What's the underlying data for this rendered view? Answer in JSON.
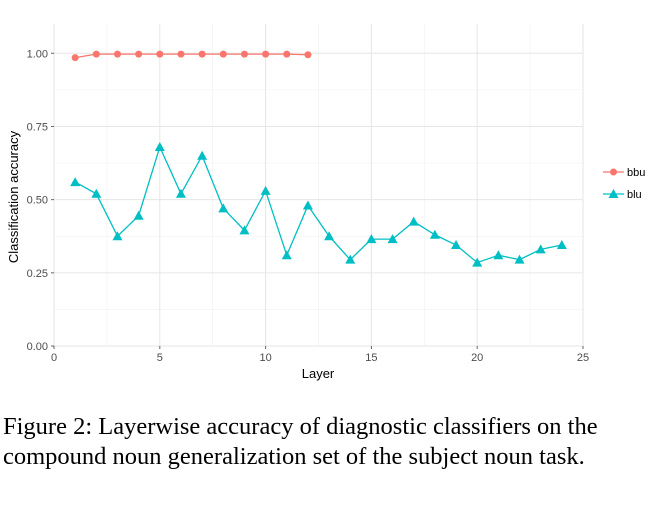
{
  "chart_data": {
    "type": "line",
    "xlabel": "Layer",
    "ylabel": "Classification accuracy",
    "xlim": [
      0,
      25
    ],
    "ylim": [
      0,
      1.1
    ],
    "xticks": [
      0,
      5,
      10,
      15,
      20,
      25
    ],
    "yticks": [
      "0.00",
      "0.25",
      "0.50",
      "0.75",
      "1.00"
    ],
    "grid": true,
    "legend_position": "right",
    "series": [
      {
        "name": "bbu",
        "color": "#F8766D",
        "marker": "circle",
        "x": [
          1,
          2,
          3,
          4,
          5,
          6,
          7,
          8,
          9,
          10,
          11,
          12
        ],
        "values": [
          0.985,
          0.997,
          0.997,
          0.997,
          0.997,
          0.997,
          0.997,
          0.997,
          0.997,
          0.997,
          0.997,
          0.995
        ]
      },
      {
        "name": "blu",
        "color": "#00BFC4",
        "marker": "triangle",
        "x": [
          1,
          2,
          3,
          4,
          5,
          6,
          7,
          8,
          9,
          10,
          11,
          12,
          13,
          14,
          15,
          16,
          17,
          18,
          19,
          20,
          21,
          22,
          23,
          24
        ],
        "values": [
          0.56,
          0.52,
          0.375,
          0.445,
          0.68,
          0.52,
          0.65,
          0.47,
          0.395,
          0.53,
          0.31,
          0.48,
          0.375,
          0.295,
          0.365,
          0.365,
          0.425,
          0.38,
          0.345,
          0.285,
          0.31,
          0.295,
          0.33,
          0.345
        ]
      }
    ]
  },
  "caption": "Figure 2: Layerwise accuracy of diagnostic classifiers on the compound noun generalization set of the subject noun task."
}
